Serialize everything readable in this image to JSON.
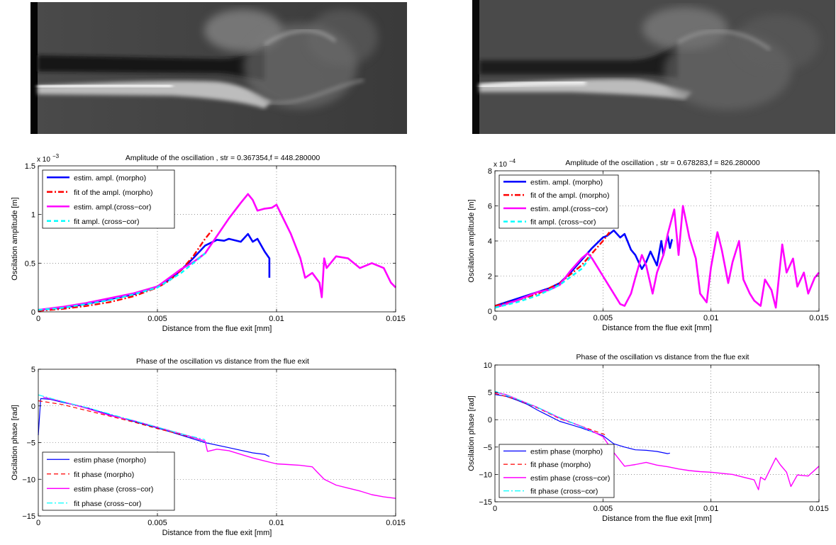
{
  "images": [
    {
      "name": "flow-visualization-left"
    },
    {
      "name": "flow-visualization-right"
    }
  ],
  "colors": {
    "morpho": "#0000ff",
    "fit_morpho": "#ff0000",
    "crosscor": "#ff00ff",
    "fit_crosscor": "#00ffff"
  },
  "chart_data": [
    {
      "type": "line",
      "title": "Amplitude of the oscillation , str = 0.367354,f = 448.280000",
      "xlabel": "Distance from the flue exit [mm]",
      "ylabel": "Oscilation amplitude [m]",
      "exponent_label": "x 10",
      "exponent_power": "−3",
      "xlim": [
        0,
        0.015
      ],
      "ylim": [
        0,
        1.5
      ],
      "xticks": [
        0,
        0.005,
        0.01,
        0.015
      ],
      "xtick_labels": [
        "0",
        "0.005",
        "0.01",
        "0.015"
      ],
      "yticks": [
        0,
        0.5,
        1,
        1.5
      ],
      "ytick_labels": [
        "0",
        "0.5",
        "1",
        "1.5"
      ],
      "grid": true,
      "legend_position": "top-left",
      "series": [
        {
          "name": "estim. ampl. (morpho)",
          "color": "#0000ff",
          "style": "solid",
          "width": 2.6,
          "x": [
            0,
            0.001,
            0.002,
            0.003,
            0.004,
            0.005,
            0.0055,
            0.006,
            0.0065,
            0.007,
            0.0075,
            0.0078,
            0.008,
            0.0085,
            0.0088,
            0.009,
            0.0092,
            0.0095,
            0.0097,
            0.0097
          ],
          "y": [
            0.02,
            0.04,
            0.08,
            0.13,
            0.18,
            0.26,
            0.33,
            0.43,
            0.55,
            0.68,
            0.74,
            0.73,
            0.75,
            0.72,
            0.8,
            0.72,
            0.75,
            0.62,
            0.55,
            0.35
          ]
        },
        {
          "name": "fit of the ampl. (morpho)",
          "color": "#ff0000",
          "style": "dashdot",
          "width": 2.4,
          "x": [
            0,
            0.001,
            0.002,
            0.003,
            0.004,
            0.005,
            0.0055,
            0.006,
            0.0065,
            0.007,
            0.0073
          ],
          "y": [
            0.01,
            0.03,
            0.06,
            0.1,
            0.16,
            0.25,
            0.32,
            0.43,
            0.57,
            0.75,
            0.84
          ]
        },
        {
          "name": "estim. ampl.(cross−cor)",
          "color": "#ff00ff",
          "style": "solid",
          "width": 2.6,
          "x": [
            0,
            0.001,
            0.002,
            0.003,
            0.004,
            0.005,
            0.006,
            0.0065,
            0.007,
            0.0075,
            0.008,
            0.0085,
            0.0088,
            0.009,
            0.0092,
            0.0095,
            0.0098,
            0.01,
            0.0103,
            0.0106,
            0.011,
            0.0112,
            0.0115,
            0.0118,
            0.0119,
            0.012,
            0.0121,
            0.0125,
            0.013,
            0.0135,
            0.014,
            0.0145,
            0.0148,
            0.015
          ],
          "y": [
            0.02,
            0.05,
            0.09,
            0.14,
            0.19,
            0.26,
            0.44,
            0.51,
            0.6,
            0.78,
            0.96,
            1.12,
            1.21,
            1.15,
            1.04,
            1.06,
            1.07,
            1.1,
            0.95,
            0.8,
            0.55,
            0.35,
            0.4,
            0.3,
            0.15,
            0.55,
            0.45,
            0.57,
            0.55,
            0.45,
            0.5,
            0.45,
            0.3,
            0.25
          ]
        },
        {
          "name": "fit ampl. (cross−cor)",
          "color": "#00ffff",
          "style": "dashed",
          "width": 2.4,
          "x": [
            0,
            0.001,
            0.002,
            0.003,
            0.004,
            0.005,
            0.006,
            0.007
          ],
          "y": [
            0.02,
            0.04,
            0.08,
            0.12,
            0.18,
            0.25,
            0.4,
            0.6
          ]
        }
      ]
    },
    {
      "type": "line",
      "title": "Phase of the oscillation vs distance from the flue exit",
      "xlabel": "Distance from the flue exit [mm]",
      "ylabel": "Oscilation phase [rad]",
      "xlim": [
        0,
        0.015
      ],
      "ylim": [
        -15,
        5
      ],
      "xticks": [
        0,
        0.005,
        0.01,
        0.015
      ],
      "xtick_labels": [
        "0",
        "0.005",
        "0.01",
        "0.015"
      ],
      "yticks": [
        -15,
        -10,
        -5,
        0,
        5
      ],
      "ytick_labels": [
        "−15",
        "−10",
        "−5",
        "0",
        "5"
      ],
      "grid": true,
      "legend_position": "bottom-left",
      "series": [
        {
          "name": "estim phase (morpho)",
          "color": "#0000ff",
          "style": "solid",
          "width": 1.2,
          "x": [
            0,
            0.0001,
            0.0005,
            0.001,
            0.002,
            0.003,
            0.004,
            0.005,
            0.006,
            0.007,
            0.008,
            0.009,
            0.0095,
            0.0097
          ],
          "y": [
            -4,
            1,
            0.9,
            0.5,
            -0.2,
            -1.2,
            -2.1,
            -3,
            -4,
            -5,
            -5.7,
            -6.4,
            -6.6,
            -6.9
          ]
        },
        {
          "name": "fit phase (morpho)",
          "color": "#ff0000",
          "style": "dashed",
          "width": 1.2,
          "x": [
            0,
            0.001,
            0.002,
            0.003,
            0.004,
            0.005,
            0.006,
            0.007
          ],
          "y": [
            0.7,
            0.2,
            -0.6,
            -1.4,
            -2.2,
            -3.1,
            -3.9,
            -4.8
          ]
        },
        {
          "name": "estim phase (cross−cor)",
          "color": "#ff00ff",
          "style": "solid",
          "width": 1.4,
          "x": [
            0.0002,
            0.001,
            0.002,
            0.003,
            0.004,
            0.005,
            0.006,
            0.007,
            0.0071,
            0.0075,
            0.008,
            0.0085,
            0.009,
            0.0095,
            0.01,
            0.0105,
            0.011,
            0.0115,
            0.0117,
            0.012,
            0.0125,
            0.013,
            0.0135,
            0.014,
            0.0145,
            0.015
          ],
          "y": [
            1.2,
            0.6,
            -0.3,
            -1.3,
            -2,
            -2.9,
            -3.8,
            -4.8,
            -6.2,
            -5.9,
            -6.1,
            -6.6,
            -7.1,
            -7.5,
            -7.9,
            -8,
            -8.1,
            -8.3,
            -9,
            -10,
            -10.8,
            -11.2,
            -11.6,
            -12.1,
            -12.4,
            -12.6
          ]
        },
        {
          "name": "fit phase (cross−cor)",
          "color": "#00ffff",
          "style": "dashdot",
          "width": 1.2,
          "x": [
            0,
            0.001,
            0.002,
            0.003,
            0.004,
            0.005,
            0.006,
            0.007
          ],
          "y": [
            1.5,
            0.6,
            -0.2,
            -1.1,
            -2,
            -2.9,
            -3.8,
            -4.6
          ]
        }
      ]
    },
    {
      "type": "line",
      "title": "Amplitude of the oscillation , str = 0.678283,f = 826.280000",
      "xlabel": "Distance from the flue exit [mm]",
      "ylabel": "Oscilation amplitude [m]",
      "exponent_label": "x 10",
      "exponent_power": "−4",
      "xlim": [
        0,
        0.015
      ],
      "ylim": [
        0,
        8
      ],
      "xticks": [
        0,
        0.005,
        0.01,
        0.015
      ],
      "xtick_labels": [
        "0",
        "0.005",
        "0.01",
        "0.015"
      ],
      "yticks": [
        0,
        2,
        4,
        6,
        8
      ],
      "ytick_labels": [
        "0",
        "2",
        "4",
        "6",
        "8"
      ],
      "grid": true,
      "legend_position": "top-left",
      "series": [
        {
          "name": "estim. ampl. (morpho)",
          "color": "#0000ff",
          "style": "solid",
          "width": 2.6,
          "x": [
            0,
            0.001,
            0.002,
            0.0025,
            0.003,
            0.0035,
            0.004,
            0.0045,
            0.005,
            0.0052,
            0.0055,
            0.0058,
            0.006,
            0.0063,
            0.0065,
            0.0068,
            0.007,
            0.0072,
            0.0075,
            0.0077,
            0.0078,
            0.008,
            0.0081,
            0.0082
          ],
          "y": [
            0.3,
            0.7,
            1.1,
            1.3,
            1.6,
            2.2,
            2.9,
            3.6,
            4.2,
            4.3,
            4.6,
            4.2,
            4.4,
            3.5,
            3.2,
            2.4,
            2.8,
            3.4,
            2.6,
            4.0,
            3.2,
            4.3,
            3.6,
            4.1
          ]
        },
        {
          "name": "fit of the ampl. (morpho)",
          "color": "#ff0000",
          "style": "dashdot",
          "width": 2.4,
          "x": [
            0,
            0.001,
            0.002,
            0.003,
            0.004,
            0.005,
            0.0053
          ],
          "y": [
            0.3,
            0.6,
            1.0,
            1.6,
            2.6,
            4.0,
            4.5
          ]
        },
        {
          "name": "estim. ampl.(cross−cor)",
          "color": "#ff00ff",
          "style": "solid",
          "width": 2.6,
          "x": [
            0,
            0.001,
            0.002,
            0.0025,
            0.003,
            0.0035,
            0.004,
            0.0043,
            0.0045,
            0.0048,
            0.005,
            0.0052,
            0.0055,
            0.0058,
            0.006,
            0.0063,
            0.0065,
            0.0068,
            0.007,
            0.0073,
            0.0075,
            0.0078,
            0.008,
            0.0083,
            0.0085,
            0.0087,
            0.009,
            0.0093,
            0.0095,
            0.0098,
            0.01,
            0.0103,
            0.0105,
            0.0108,
            0.011,
            0.0113,
            0.0115,
            0.0118,
            0.012,
            0.0123,
            0.0125,
            0.0128,
            0.013,
            0.0133,
            0.0135,
            0.0138,
            0.014,
            0.0143,
            0.0145,
            0.0148,
            0.015
          ],
          "y": [
            0.2,
            0.6,
            1.1,
            1.2,
            1.5,
            2.3,
            3.0,
            3.3,
            3.0,
            2.4,
            2.0,
            1.6,
            1.0,
            0.4,
            0.3,
            1.0,
            1.9,
            3.2,
            2.6,
            1.0,
            2.2,
            3.2,
            4.4,
            5.8,
            3.2,
            6.0,
            4.2,
            3.0,
            1.0,
            0.5,
            2.5,
            4.5,
            3.5,
            1.6,
            2.8,
            4.0,
            1.8,
            1.0,
            0.6,
            0.3,
            1.8,
            1.2,
            0.2,
            3.8,
            2.2,
            3.0,
            1.4,
            2.2,
            1.0,
            1.9,
            2.2
          ]
        },
        {
          "name": "fit ampl. (cross−cor)",
          "color": "#00ffff",
          "style": "dashed",
          "width": 2.4,
          "x": [
            0,
            0.001,
            0.002,
            0.003,
            0.004,
            0.0045
          ],
          "y": [
            0.2,
            0.5,
            0.9,
            1.5,
            2.4,
            3.2
          ]
        }
      ]
    },
    {
      "type": "line",
      "title": "Phase of the oscillation vs distance from the flue exit",
      "xlabel": "Distance from the flue exit [mm]",
      "ylabel": "Oscilation phase [rad]",
      "xlim": [
        0,
        0.015
      ],
      "ylim": [
        -15,
        10
      ],
      "xticks": [
        0,
        0.005,
        0.01,
        0.015
      ],
      "xtick_labels": [
        "0",
        "0.005",
        "0.01",
        "0.015"
      ],
      "yticks": [
        -15,
        -10,
        -5,
        0,
        5,
        10
      ],
      "ytick_labels": [
        "−15",
        "−10",
        "−5",
        "0",
        "5",
        "10"
      ],
      "grid": true,
      "legend_position": "bottom-left",
      "series": [
        {
          "name": "estim phase (morpho)",
          "color": "#0000ff",
          "style": "solid",
          "width": 1.2,
          "x": [
            0,
            0.0005,
            0.001,
            0.0015,
            0.002,
            0.0025,
            0.003,
            0.0035,
            0.004,
            0.0045,
            0.005,
            0.0055,
            0.006,
            0.0065,
            0.007,
            0.0075,
            0.008,
            0.0081
          ],
          "y": [
            4.6,
            4.3,
            3.6,
            2.8,
            1.7,
            0.7,
            -0.3,
            -0.9,
            -1.5,
            -2.2,
            -2.9,
            -4.4,
            -5,
            -5.5,
            -5.6,
            -5.8,
            -6.2,
            -6.1
          ]
        },
        {
          "name": "fit phase (morpho)",
          "color": "#ff0000",
          "style": "dashed",
          "width": 1.2,
          "x": [
            0,
            0.001,
            0.002,
            0.003,
            0.004,
            0.005,
            0.0052
          ],
          "y": [
            4.8,
            3.7,
            2.1,
            0.2,
            -1.2,
            -2.6,
            -2.9
          ]
        },
        {
          "name": "estim phase (cross−cor)",
          "color": "#ff00ff",
          "style": "solid",
          "width": 1.4,
          "x": [
            0,
            0.0005,
            0.001,
            0.002,
            0.003,
            0.004,
            0.0045,
            0.005,
            0.0055,
            0.006,
            0.0065,
            0.007,
            0.0075,
            0.008,
            0.0085,
            0.009,
            0.0095,
            0.01,
            0.0105,
            0.011,
            0.0115,
            0.012,
            0.0122,
            0.0123,
            0.0125,
            0.013,
            0.0132,
            0.0135,
            0.0137,
            0.014,
            0.0145,
            0.015
          ],
          "y": [
            5,
            4.6,
            3.8,
            2.2,
            0.3,
            -1.2,
            -2.1,
            -3.1,
            -6,
            -8.5,
            -8.2,
            -7.8,
            -8.3,
            -8.6,
            -9,
            -9.3,
            -9.5,
            -9.6,
            -9.8,
            -10,
            -10.5,
            -11,
            -12.8,
            -10.5,
            -11,
            -7,
            -8.2,
            -9.6,
            -12.2,
            -10.1,
            -10.3,
            -8.5
          ]
        },
        {
          "name": "fit phase (cross−cor)",
          "color": "#00ffff",
          "style": "dashdot",
          "width": 1.2,
          "x": [
            0,
            0.001,
            0.002,
            0.003,
            0.004,
            0.0045
          ],
          "y": [
            5.2,
            3.8,
            2.2,
            0.4,
            -1.3,
            -2.2
          ]
        }
      ]
    }
  ]
}
